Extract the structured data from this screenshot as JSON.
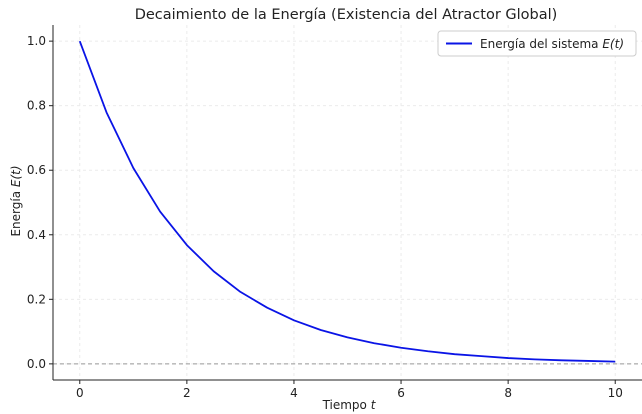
{
  "chart_data": {
    "type": "line",
    "title": "Decaimiento de la Energía (Existencia del Atractor Global)",
    "xlabel": "Tiempo t",
    "ylabel": "Energía E(t)",
    "xlim": [
      -0.5,
      10.5
    ],
    "ylim": [
      -0.05,
      1.05
    ],
    "xticks": [
      0,
      2,
      4,
      6,
      8,
      10
    ],
    "yticks": [
      0.0,
      0.2,
      0.4,
      0.6,
      0.8,
      1.0
    ],
    "xtick_labels": [
      "0",
      "2",
      "4",
      "6",
      "8",
      "10"
    ],
    "ytick_labels": [
      "0.0",
      "0.2",
      "0.4",
      "0.6",
      "0.8",
      "1.0"
    ],
    "grid": true,
    "legend_position": "top-right",
    "reference_line": {
      "y": 0,
      "style": "dashed",
      "color": "#999999"
    },
    "series": [
      {
        "name": "Energía del sistema E(t)",
        "color": "#0a14e6",
        "x": [
          0,
          0.5,
          1,
          1.5,
          2,
          2.5,
          3,
          3.5,
          4,
          4.5,
          5,
          5.5,
          6,
          6.5,
          7,
          7.5,
          8,
          8.5,
          9,
          9.5,
          10
        ],
        "y": [
          1.0,
          0.779,
          0.607,
          0.472,
          0.368,
          0.287,
          0.223,
          0.174,
          0.135,
          0.105,
          0.082,
          0.064,
          0.05,
          0.039,
          0.03,
          0.024,
          0.018,
          0.014,
          0.011,
          0.009,
          0.007
        ]
      }
    ]
  }
}
